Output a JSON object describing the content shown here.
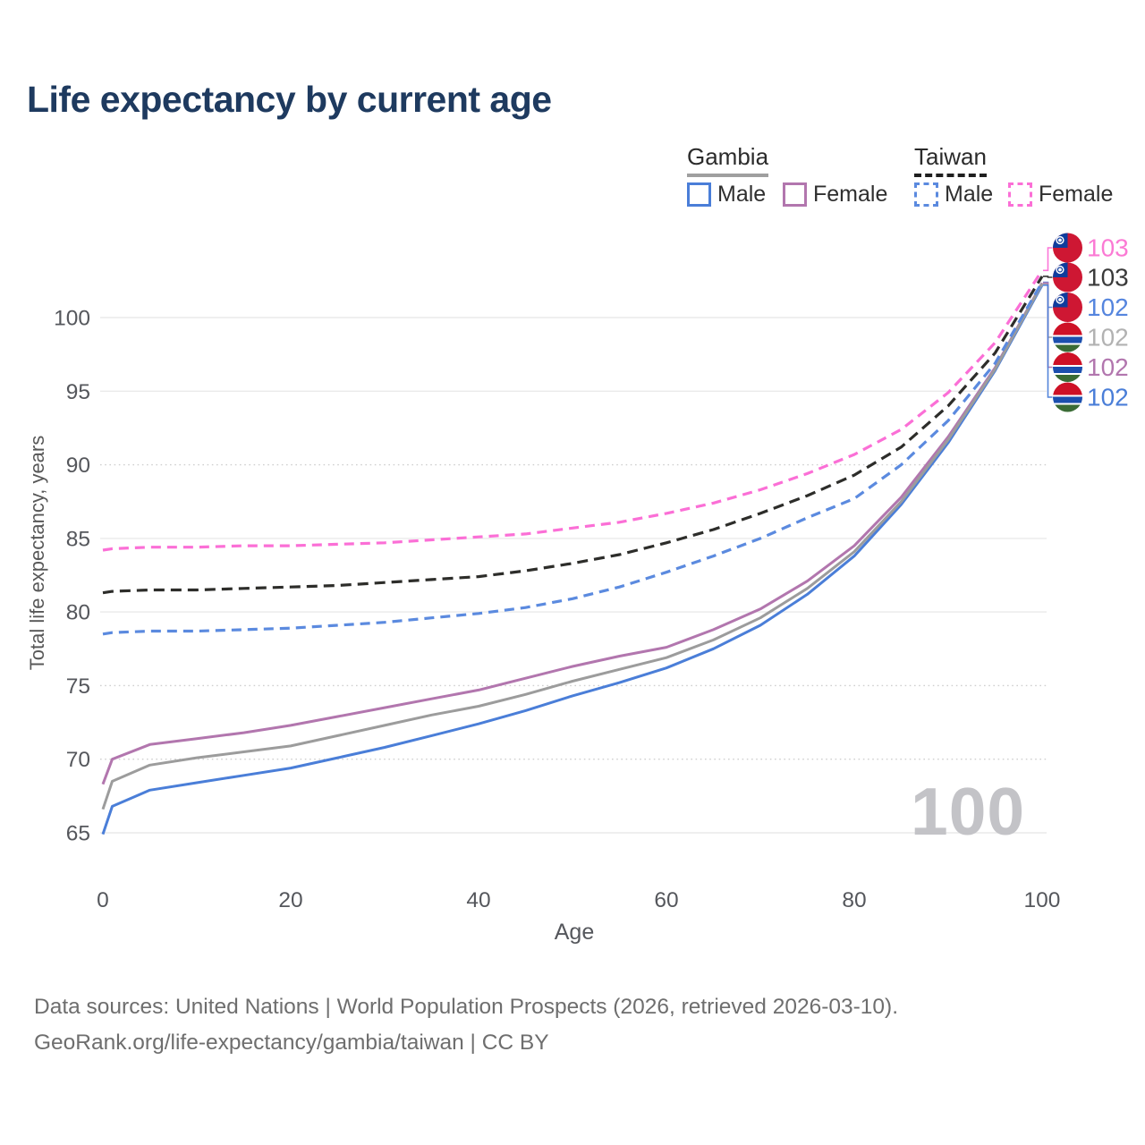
{
  "title": "Life expectancy by current age",
  "legend": {
    "groups": [
      {
        "label": "Gambia",
        "line_style": "solid",
        "line_color": "#9f9f9f",
        "items": [
          {
            "label": "Male",
            "color": "#4a7ed8",
            "dashed": false
          },
          {
            "label": "Female",
            "color": "#b276ae",
            "dashed": false
          }
        ]
      },
      {
        "label": "Taiwan",
        "line_style": "dashed",
        "line_color": "#1f1f1f",
        "items": [
          {
            "label": "Male",
            "color": "#5b8adf",
            "dashed": true
          },
          {
            "label": "Female",
            "color": "#fb6fd6",
            "dashed": true
          }
        ]
      }
    ]
  },
  "chart_data": {
    "type": "line",
    "title": "Life expectancy by current age",
    "xlabel": "Age",
    "ylabel": "Total life expectancy, years",
    "xlim": [
      0,
      100
    ],
    "ylim": [
      63,
      104
    ],
    "x_ticks": [
      0,
      20,
      40,
      60,
      80,
      100
    ],
    "y_ticks": [
      65,
      70,
      75,
      80,
      85,
      90,
      95,
      100
    ],
    "y_dotted_gridlines": [
      70,
      75,
      90
    ],
    "grid": "on",
    "legend_position": "top-right",
    "watermark": "100",
    "x": [
      0,
      1,
      5,
      10,
      15,
      20,
      25,
      30,
      35,
      40,
      45,
      50,
      55,
      60,
      65,
      70,
      75,
      80,
      85,
      90,
      95,
      100
    ],
    "series": [
      {
        "id": "taiwan-female",
        "name": "Taiwan Female",
        "country": "Taiwan",
        "sex": "Female",
        "color": "#fb6fd6",
        "dash": "11 7",
        "width": 3.2,
        "flag": "taiwan",
        "end_label": "103",
        "end_label_color": "#fb7ad4",
        "values": [
          84.2,
          84.3,
          84.4,
          84.4,
          84.5,
          84.5,
          84.6,
          84.7,
          84.9,
          85.1,
          85.3,
          85.7,
          86.1,
          86.7,
          87.4,
          88.3,
          89.4,
          90.7,
          92.4,
          94.9,
          98.3,
          103.2
        ]
      },
      {
        "id": "taiwan-total",
        "name": "Taiwan",
        "country": "Taiwan",
        "sex": "Both",
        "color": "#2d2d2a",
        "dash": "12 7",
        "width": 3.2,
        "flag": "taiwan",
        "end_label": "103",
        "end_label_color": "#3a3a3a",
        "values": [
          81.3,
          81.4,
          81.5,
          81.5,
          81.6,
          81.7,
          81.8,
          82.0,
          82.2,
          82.4,
          82.8,
          83.3,
          83.9,
          84.7,
          85.6,
          86.7,
          87.9,
          89.3,
          91.2,
          94.0,
          97.6,
          102.8
        ]
      },
      {
        "id": "taiwan-male",
        "name": "Taiwan Male",
        "country": "Taiwan",
        "sex": "Male",
        "color": "#5b8adf",
        "dash": "11 7",
        "width": 3.2,
        "flag": "taiwan",
        "end_label": "102",
        "end_label_color": "#5585de",
        "values": [
          78.5,
          78.6,
          78.7,
          78.7,
          78.8,
          78.9,
          79.1,
          79.3,
          79.6,
          79.9,
          80.3,
          80.9,
          81.7,
          82.7,
          83.8,
          85.0,
          86.4,
          87.7,
          90.0,
          93.0,
          96.9,
          102.4
        ]
      },
      {
        "id": "gambia-total",
        "name": "Gambia",
        "country": "Gambia",
        "sex": "Both",
        "color": "#9c9c9c",
        "dash": null,
        "width": 3,
        "flag": "gambia",
        "end_label": "102",
        "end_label_color": "#b2b2b2",
        "values": [
          66.6,
          68.5,
          69.6,
          70.1,
          70.5,
          70.9,
          71.6,
          72.3,
          73.0,
          73.6,
          74.4,
          75.3,
          76.1,
          76.9,
          78.1,
          79.6,
          81.6,
          84.1,
          87.5,
          91.7,
          96.5,
          102.3
        ]
      },
      {
        "id": "gambia-female",
        "name": "Gambia Female",
        "country": "Gambia",
        "sex": "Female",
        "color": "#b276ae",
        "dash": null,
        "width": 3,
        "flag": "gambia",
        "end_label": "102",
        "end_label_color": "#b276ae",
        "values": [
          68.3,
          70.0,
          71.0,
          71.4,
          71.8,
          72.3,
          72.9,
          73.5,
          74.1,
          74.7,
          75.5,
          76.3,
          77.0,
          77.6,
          78.8,
          80.2,
          82.1,
          84.5,
          87.8,
          91.9,
          96.6,
          102.35
        ]
      },
      {
        "id": "gambia-male",
        "name": "Gambia Male",
        "country": "Gambia",
        "sex": "Male",
        "color": "#4a7ed8",
        "dash": null,
        "width": 3,
        "flag": "gambia",
        "end_label": "102",
        "end_label_color": "#4a7ed8",
        "values": [
          64.9,
          66.8,
          67.9,
          68.4,
          68.9,
          69.4,
          70.1,
          70.8,
          71.6,
          72.4,
          73.3,
          74.3,
          75.2,
          76.2,
          77.5,
          79.1,
          81.2,
          83.8,
          87.3,
          91.5,
          96.4,
          102.2
        ]
      }
    ]
  },
  "footer": {
    "line1": "Data sources: United Nations | World Population Prospects (2026, retrieved 2026-03-10).",
    "line2": "GeoRank.org/life-expectancy/gambia/taiwan | CC BY"
  }
}
